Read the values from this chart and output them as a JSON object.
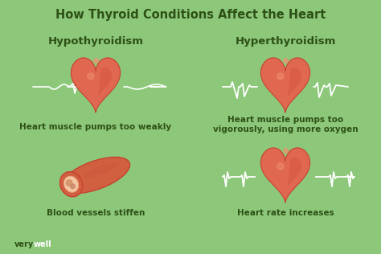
{
  "background_color": "#8dc87a",
  "title": "How Thyroid Conditions Affect the Heart",
  "title_color": "#2d5016",
  "title_fontsize": 10.5,
  "left_heading": "Hypothyroidism",
  "right_heading": "Hyperthyroidism",
  "heading_color": "#2d5016",
  "heading_fontsize": 9.5,
  "label_color": "#2d5016",
  "label_fontsize": 7.5,
  "labels_left": [
    "Heart muscle pumps too weakly",
    "Blood vessels stiffen"
  ],
  "labels_right": [
    "Heart muscle pumps too\nvigorously, using more oxygen",
    "Heart rate increases"
  ],
  "watermark_very": "very",
  "watermark_well": "well",
  "watermark_color_very": "#2d5016",
  "watermark_color_well": "#ffffff",
  "heart_color": "#e06850",
  "heart_dark": "#c84030",
  "heart_highlight": "#f09070",
  "ecg_color": "#ffffff",
  "vessel_outer": "#c84030",
  "vessel_mid": "#d06040",
  "vessel_inner": "#f5c5a0",
  "vessel_lumen_color": "#e8a080"
}
